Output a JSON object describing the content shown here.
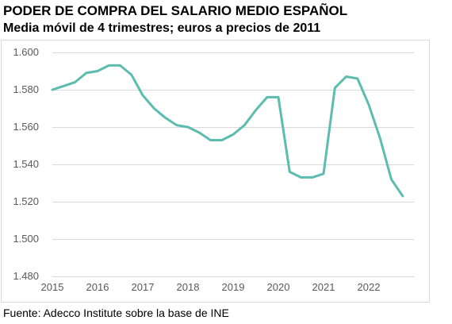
{
  "chart_data": {
    "type": "line",
    "title": "PODER DE COMPRA DEL SALARIO MEDIO ESPAÑOL",
    "subtitle": "Media móvil de 4 trimestres; euros a precios de 2011",
    "source": "Fuente: Adecco Institute sobre la base de INE",
    "xlabel": "",
    "ylabel": "",
    "ylim": [
      1480,
      1600
    ],
    "xlim": [
      2015,
      2023
    ],
    "grid": true,
    "legend": "none",
    "line_color": "#5CBCAF",
    "grid_color": "#D9D9D9",
    "y_ticks": [
      {
        "value": 1480,
        "label": "1.480"
      },
      {
        "value": 1500,
        "label": "1.500"
      },
      {
        "value": 1520,
        "label": "1.520"
      },
      {
        "value": 1540,
        "label": "1.540"
      },
      {
        "value": 1560,
        "label": "1.560"
      },
      {
        "value": 1580,
        "label": "1.580"
      },
      {
        "value": 1600,
        "label": "1.600"
      }
    ],
    "x_ticks": [
      {
        "value": 2015,
        "label": "2015"
      },
      {
        "value": 2016,
        "label": "2016"
      },
      {
        "value": 2017,
        "label": "2017"
      },
      {
        "value": 2018,
        "label": "2018"
      },
      {
        "value": 2019,
        "label": "2019"
      },
      {
        "value": 2020,
        "label": "2020"
      },
      {
        "value": 2021,
        "label": "2021"
      },
      {
        "value": 2022,
        "label": "2022"
      }
    ],
    "series": [
      {
        "x": [
          2015.0,
          2015.25,
          2015.5,
          2015.75,
          2016.0,
          2016.25,
          2016.5,
          2016.75,
          2017.0,
          2017.25,
          2017.5,
          2017.75,
          2018.0,
          2018.25,
          2018.5,
          2018.75,
          2019.0,
          2019.25,
          2019.5,
          2019.75,
          2020.0,
          2020.25,
          2020.5,
          2020.75,
          2021.0,
          2021.25,
          2021.5,
          2021.75,
          2022.0,
          2022.25,
          2022.5,
          2022.75
        ],
        "y": [
          1580,
          1582,
          1584,
          1589,
          1590,
          1593,
          1593,
          1588,
          1577,
          1570,
          1565,
          1561,
          1560,
          1557,
          1553,
          1553,
          1556,
          1561,
          1569,
          1576,
          1576,
          1536,
          1533,
          1533,
          1535,
          1581,
          1587,
          1586,
          1572,
          1554,
          1532,
          1523
        ]
      }
    ]
  }
}
